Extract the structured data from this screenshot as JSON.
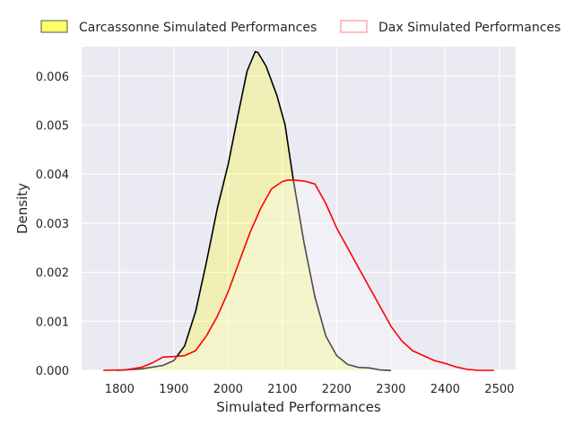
{
  "chart_data": {
    "type": "area",
    "title": "",
    "xlabel": "Simulated Performances",
    "ylabel": "Density",
    "xlim": [
      1730,
      2530
    ],
    "ylim": [
      0,
      0.0066
    ],
    "x_ticks": [
      1800,
      1900,
      2000,
      2100,
      2200,
      2300,
      2400,
      2500
    ],
    "y_ticks": [
      0.0,
      0.001,
      0.002,
      0.003,
      0.004,
      0.005,
      0.006
    ],
    "x_tick_labels": [
      "1800",
      "1900",
      "2000",
      "2100",
      "2200",
      "2300",
      "2400",
      "2500"
    ],
    "y_tick_labels": [
      "0.000",
      "0.001",
      "0.002",
      "0.003",
      "0.004",
      "0.005",
      "0.006"
    ],
    "grid": true,
    "legend_position": "top",
    "series": [
      {
        "name": "Carcassonne Simulated Performances",
        "fill": "#ffff00",
        "fill_opacity": 0.25,
        "line": "#000000",
        "legend_fill": "#ffff66",
        "legend_edge": "#555555",
        "x": [
          1795,
          1840,
          1880,
          1900,
          1920,
          1940,
          1960,
          1980,
          2000,
          2020,
          2035,
          2050,
          2055,
          2070,
          2090,
          2105,
          2120,
          2140,
          2160,
          2180,
          2200,
          2220,
          2240,
          2260,
          2280,
          2300
        ],
        "y": [
          0.0,
          3e-05,
          0.0001,
          0.0002,
          0.0005,
          0.0012,
          0.0022,
          0.0033,
          0.0042,
          0.0053,
          0.0061,
          0.0065,
          0.00648,
          0.0062,
          0.0056,
          0.005,
          0.0039,
          0.0026,
          0.0015,
          0.0007,
          0.0003,
          0.00012,
          6e-05,
          5e-05,
          1e-05,
          0.0
        ]
      },
      {
        "name": "Dax Simulated Performances",
        "fill": "#ffffff",
        "fill_opacity": 0.3,
        "line": "#ff0000",
        "legend_fill": "#ffffff",
        "legend_edge": "#ff7f7f",
        "x": [
          1770,
          1810,
          1840,
          1860,
          1880,
          1900,
          1920,
          1940,
          1960,
          1980,
          2000,
          2020,
          2040,
          2060,
          2080,
          2100,
          2110,
          2120,
          2140,
          2160,
          2180,
          2200,
          2220,
          2240,
          2260,
          2280,
          2300,
          2320,
          2340,
          2360,
          2380,
          2400,
          2420,
          2440,
          2460,
          2490
        ],
        "y": [
          0.0,
          1e-05,
          6e-05,
          0.00015,
          0.00027,
          0.00028,
          0.0003,
          0.0004,
          0.0007,
          0.0011,
          0.0016,
          0.0022,
          0.0028,
          0.0033,
          0.0037,
          0.00385,
          0.00388,
          0.00388,
          0.00386,
          0.0038,
          0.0034,
          0.0029,
          0.0025,
          0.0021,
          0.0017,
          0.0013,
          0.0009,
          0.0006,
          0.0004,
          0.0003,
          0.0002,
          0.00014,
          7e-05,
          2e-05,
          0.0,
          0.0
        ]
      }
    ]
  }
}
